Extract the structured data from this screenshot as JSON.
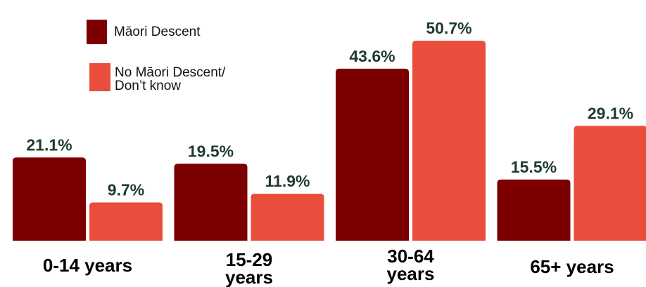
{
  "chart_data": {
    "type": "bar",
    "categories": [
      "0-14 years",
      "15-29 years",
      "30-64 years",
      "65+ years"
    ],
    "series": [
      {
        "name": "Māori Descent",
        "color": "#7d0000",
        "values": [
          21.1,
          19.5,
          43.6,
          15.5
        ],
        "value_labels": [
          "21.1%",
          "19.5%",
          "43.6%",
          "15.5%"
        ]
      },
      {
        "name": "No Māori Descent/ Don’t know",
        "color": "#e84e3b",
        "values": [
          9.7,
          11.9,
          50.7,
          29.1
        ],
        "value_labels": [
          "9.7%",
          "11.9%",
          "50.7%",
          "29.1%"
        ]
      }
    ],
    "legend": "upper left"
  }
}
